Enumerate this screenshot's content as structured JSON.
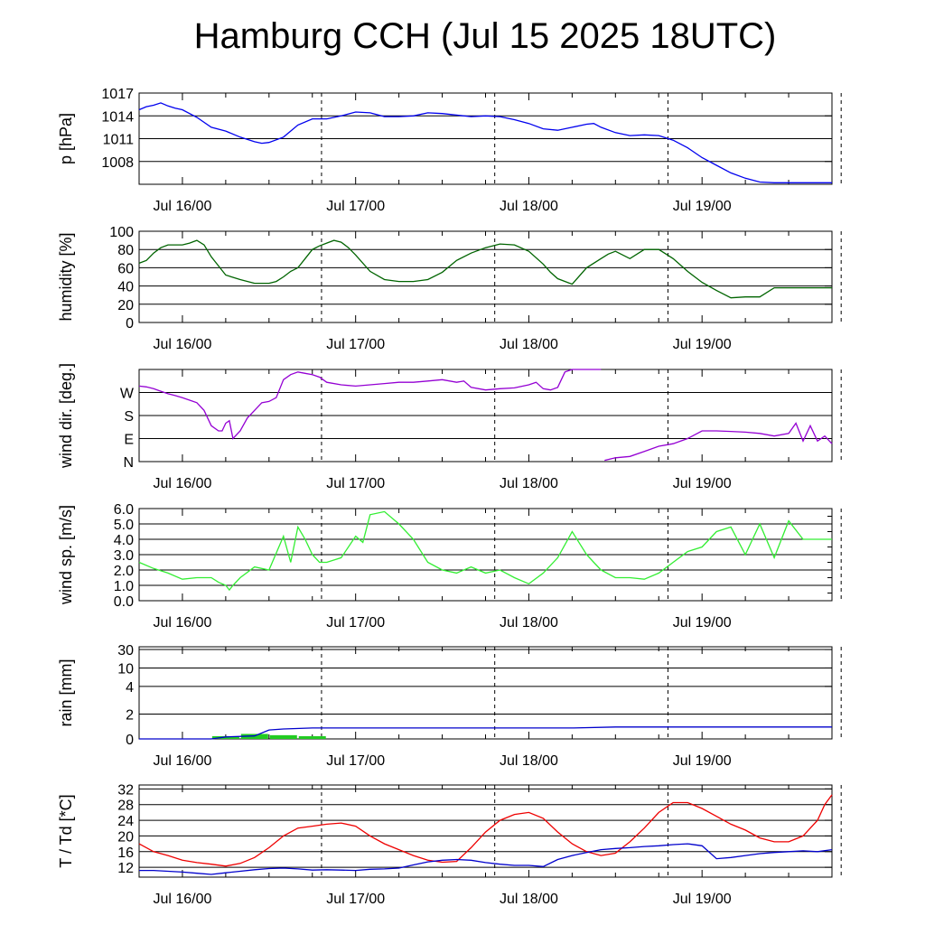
{
  "title": "Hamburg CCH (Jul 15 2025 18UTC)",
  "colors": {
    "pressure": "#0000ee",
    "humidity": "#006400",
    "wind_dir": "#9400d3",
    "wind_speed": "#33ee33",
    "rain_cum": "#0000cc",
    "rain_bar": "#22cc22",
    "temperature": "#ee0000",
    "dewpoint": "#0000cc"
  },
  "chart_data": [
    {
      "type": "line",
      "ylabel": "p [hPa]",
      "y_ticks": [
        1008,
        1011,
        1014,
        1017
      ],
      "ylim": [
        1005,
        1017
      ],
      "x_labels": [
        "Jul 16/00",
        "Jul 17/00",
        "Jul 18/00",
        "Jul 19/00"
      ],
      "x_range_hours": [
        0,
        96
      ],
      "series": [
        {
          "x": [
            0,
            1,
            2,
            3,
            4,
            5,
            6,
            8,
            10,
            12,
            14,
            16,
            17,
            18,
            20,
            22,
            24,
            26,
            28,
            30,
            32,
            34,
            36,
            38,
            40,
            42,
            44,
            46,
            48,
            50,
            52,
            54,
            56,
            58,
            60,
            62,
            63,
            64,
            66,
            68,
            70,
            72,
            74,
            76,
            78,
            80,
            82,
            84,
            86,
            88,
            90,
            92,
            94,
            95,
            96
          ],
          "y": [
            1014.8,
            1015.2,
            1015.4,
            1015.7,
            1015.3,
            1015,
            1014.8,
            1013.8,
            1012.5,
            1012,
            1011.2,
            1010.6,
            1010.4,
            1010.5,
            1011.2,
            1012.8,
            1013.6,
            1013.6,
            1014,
            1014.5,
            1014.4,
            1013.9,
            1013.9,
            1014,
            1014.4,
            1014.3,
            1014.1,
            1013.9,
            1014,
            1013.9,
            1013.5,
            1013,
            1012.3,
            1012.1,
            1012.5,
            1012.9,
            1013,
            1012.5,
            1011.8,
            1011.4,
            1011.5,
            1011.4,
            1010.8,
            1009.8,
            1008.5,
            1007.5,
            1006.5,
            1005.8,
            1005.3,
            1005.2,
            1005.2,
            1005.2,
            1005.2,
            1005.2,
            1005.2
          ]
        }
      ]
    },
    {
      "type": "line",
      "ylabel": "humidity [%]",
      "y_ticks": [
        0,
        20,
        40,
        60,
        80,
        100
      ],
      "ylim": [
        0,
        100
      ],
      "x_labels": [
        "Jul 16/00",
        "Jul 17/00",
        "Jul 18/00",
        "Jul 19/00"
      ],
      "series": [
        {
          "x": [
            0,
            1,
            2,
            3,
            4,
            5,
            6,
            7,
            8,
            9,
            10,
            11,
            12,
            14,
            16,
            18,
            19,
            20,
            21,
            22,
            23,
            24,
            25,
            26,
            27,
            28,
            29,
            30,
            32,
            34,
            36,
            38,
            40,
            42,
            44,
            46,
            48,
            50,
            52,
            54,
            56,
            57,
            58,
            60,
            62,
            64,
            65,
            66,
            68,
            70,
            72,
            74,
            76,
            78,
            80,
            82,
            84,
            86,
            88,
            90,
            92,
            94,
            95,
            96
          ],
          "y": [
            65,
            68,
            76,
            82,
            85,
            85,
            85,
            87,
            90,
            85,
            72,
            62,
            52,
            47,
            43,
            43,
            45,
            50,
            56,
            60,
            70,
            80,
            84,
            87,
            90,
            88,
            82,
            74,
            56,
            47,
            45,
            45,
            47,
            55,
            68,
            76,
            82,
            86,
            85,
            78,
            64,
            55,
            48,
            42,
            60,
            70,
            75,
            78,
            70,
            80,
            80,
            70,
            56,
            44,
            35,
            27,
            28,
            28,
            38,
            38,
            38,
            38,
            38,
            38
          ]
        }
      ]
    },
    {
      "type": "line",
      "ylabel": "wind dir. [deg.]",
      "y_ticks": [
        "N",
        "E",
        "S",
        "W"
      ],
      "ylim_deg": [
        0,
        360
      ],
      "x_labels": [
        "Jul 16/00",
        "Jul 17/00",
        "Jul 18/00",
        "Jul 19/00"
      ],
      "series": [
        {
          "segment": 1,
          "x": [
            0,
            1,
            2,
            3,
            4,
            5,
            6,
            7,
            8,
            9,
            10,
            11,
            11.5,
            12,
            12.5,
            13,
            14,
            15,
            16,
            17,
            18,
            19,
            20,
            21,
            22,
            23,
            24,
            25,
            26,
            28,
            30,
            32,
            34,
            36,
            38,
            40,
            42,
            44,
            45,
            46,
            48,
            50,
            52,
            54,
            55,
            56,
            57,
            58,
            58.5,
            59,
            60,
            62,
            64
          ],
          "y": [
            295,
            292,
            285,
            275,
            265,
            258,
            250,
            240,
            230,
            200,
            140,
            120,
            120,
            150,
            160,
            90,
            120,
            170,
            200,
            230,
            235,
            250,
            320,
            340,
            350,
            345,
            340,
            330,
            310,
            300,
            295,
            300,
            305,
            310,
            310,
            315,
            320,
            310,
            315,
            290,
            280,
            285,
            288,
            300,
            310,
            285,
            280,
            290,
            320,
            350,
            360,
            360,
            360
          ]
        },
        {
          "segment": 2,
          "x": [
            64.5,
            66,
            68,
            70,
            72,
            74,
            76,
            78,
            80,
            82,
            84,
            86,
            88,
            90,
            91,
            92,
            93,
            94,
            95,
            96
          ],
          "y": [
            5,
            15,
            20,
            40,
            60,
            70,
            90,
            120,
            120,
            118,
            115,
            110,
            100,
            110,
            150,
            80,
            140,
            80,
            100,
            70
          ]
        }
      ]
    },
    {
      "type": "line",
      "ylabel": "wind sp. [m/s]",
      "y_ticks": [
        0.0,
        1.0,
        2.0,
        3.0,
        4.0,
        5.0,
        6.0
      ],
      "ylim": [
        0,
        6.0
      ],
      "x_labels": [
        "Jul 16/00",
        "Jul 17/00",
        "Jul 18/00",
        "Jul 19/00"
      ],
      "series": [
        {
          "x": [
            0,
            2,
            4,
            6,
            8,
            10,
            11,
            12,
            12.5,
            13,
            14,
            16,
            18,
            20,
            21,
            22,
            23,
            24,
            25,
            26,
            28,
            30,
            31,
            32,
            34,
            36,
            38,
            40,
            42,
            44,
            46,
            48,
            50,
            52,
            54,
            56,
            58,
            60,
            62,
            63,
            64,
            66,
            68,
            70,
            72,
            74,
            76,
            78,
            80,
            82,
            84,
            86,
            88,
            90,
            92,
            93,
            94,
            95,
            96
          ],
          "y": [
            2.5,
            2.1,
            1.8,
            1.4,
            1.5,
            1.5,
            1.2,
            1.0,
            0.7,
            1.0,
            1.5,
            2.2,
            2.0,
            4.2,
            2.5,
            4.8,
            4.0,
            3.0,
            2.5,
            2.5,
            2.8,
            4.2,
            3.8,
            5.6,
            5.8,
            5.0,
            4.0,
            2.5,
            2.0,
            1.8,
            2.2,
            1.8,
            2.0,
            1.5,
            1.1,
            1.8,
            2.8,
            4.5,
            3.0,
            2.5,
            2.0,
            1.5,
            1.5,
            1.4,
            1.8,
            2.5,
            3.2,
            3.5,
            4.5,
            4.8,
            3.0,
            5.0,
            2.8,
            5.2,
            4.0,
            4.0,
            4.0,
            4.0,
            4.0
          ]
        }
      ]
    },
    {
      "type": "area",
      "ylabel": "rain [mm]",
      "y_ticks": [
        "0",
        "2",
        "4",
        "10",
        "30"
      ],
      "x_labels": [
        "Jul 16/00",
        "Jul 17/00",
        "Jul 18/00",
        "Jul 19/00"
      ],
      "series": [
        {
          "name": "cumulative",
          "x": [
            0,
            6,
            10,
            12,
            16,
            18,
            20,
            24,
            60,
            66,
            96
          ],
          "y": [
            0,
            0,
            0,
            0.2,
            0.3,
            0.9,
            1.0,
            1.1,
            1.1,
            1.2,
            1.2
          ]
        },
        {
          "name": "hourly",
          "x": [
            12,
            16,
            20,
            24
          ],
          "y": [
            0.1,
            0.2,
            0.15,
            0.05
          ]
        }
      ]
    },
    {
      "type": "line",
      "ylabel": "T / Td [*C]",
      "y_ticks": [
        12,
        16,
        20,
        24,
        28,
        32
      ],
      "ylim": [
        9,
        33
      ],
      "x_labels": [
        "Jul 16/00",
        "Jul 17/00",
        "Jul 18/00",
        "Jul 19/00"
      ],
      "series": [
        {
          "x": [
            0,
            2,
            4,
            6,
            8,
            10,
            12,
            14,
            16,
            18,
            20,
            22,
            24,
            26,
            28,
            30,
            32,
            34,
            36,
            38,
            40,
            42,
            44,
            46,
            48,
            50,
            52,
            54,
            56,
            58,
            60,
            62,
            64,
            66,
            68,
            70,
            72,
            74,
            76,
            78,
            80,
            82,
            84,
            86,
            88,
            90,
            92,
            94,
            95,
            96
          ],
          "y": [
            18,
            16,
            15,
            13.8,
            13.2,
            12.8,
            12.3,
            13,
            14.5,
            17,
            20,
            22,
            22.5,
            23,
            23.3,
            22.5,
            20,
            18,
            16.5,
            15,
            13.8,
            13.3,
            13.5,
            17,
            21,
            24,
            25.5,
            26,
            24.5,
            21,
            18,
            16,
            15,
            15.6,
            18.5,
            22,
            26,
            28.5,
            28.5,
            27,
            25,
            23,
            21.5,
            19.5,
            18.5,
            18.5,
            20,
            24,
            28,
            30.5
          ]
        },
        {
          "x": [
            0,
            2,
            4,
            6,
            8,
            10,
            12,
            14,
            16,
            18,
            20,
            22,
            24,
            26,
            28,
            30,
            32,
            34,
            36,
            38,
            40,
            42,
            44,
            46,
            48,
            50,
            52,
            54,
            56,
            58,
            60,
            62,
            64,
            66,
            68,
            70,
            72,
            74,
            76,
            78,
            80,
            82,
            84,
            86,
            88,
            90,
            92,
            94,
            96
          ],
          "y": [
            11.2,
            11.2,
            11,
            10.8,
            10.5,
            10.2,
            10.6,
            11,
            11.4,
            11.7,
            11.8,
            11.6,
            11.3,
            11.4,
            11.3,
            11.2,
            11.5,
            11.6,
            11.8,
            12.6,
            13.4,
            13.8,
            14,
            13.8,
            13.2,
            12.8,
            12.5,
            12.5,
            12.2,
            14,
            15,
            15.8,
            16.5,
            16.8,
            17,
            17.3,
            17.5,
            17.8,
            18,
            17.5,
            14.2,
            14.5,
            15,
            15.5,
            15.8,
            16,
            16.2,
            16,
            16.5
          ]
        }
      ]
    }
  ]
}
